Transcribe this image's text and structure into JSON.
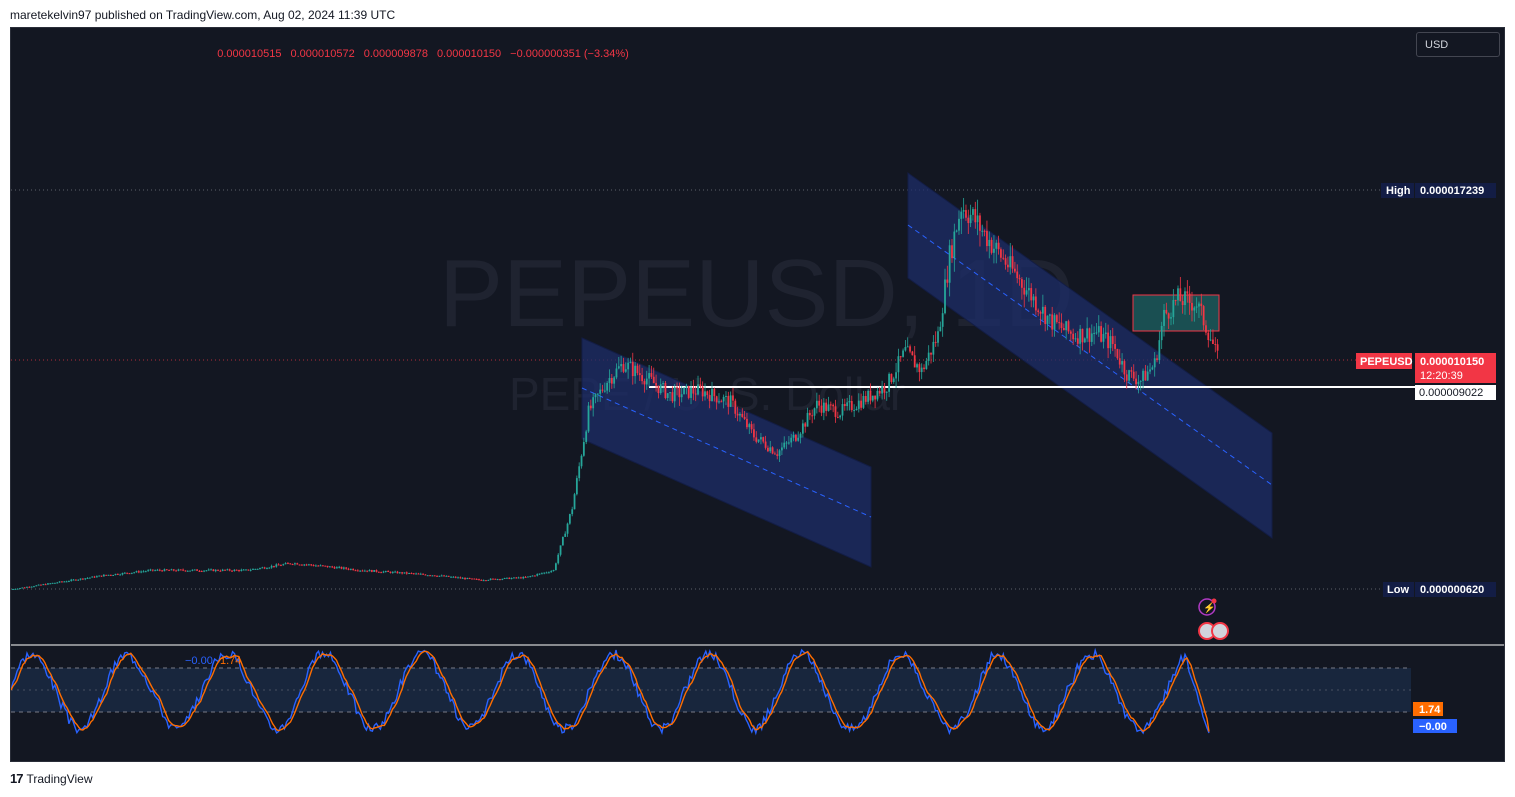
{
  "header": {
    "publish_text": "maretekelvin97 published on TradingView.com, Aug 02, 2024 11:39 UTC"
  },
  "ohlc": {
    "open": "0.000010515",
    "high": "0.000010572",
    "low": "0.000009878",
    "close": "0.000010150",
    "change": "−0.000000351 (−3.34%)"
  },
  "toolbar": {
    "currency": "USD"
  },
  "watermark": {
    "symbol": "PEPEUSD, 1D",
    "description": "PEPE / U. S. Dollar"
  },
  "colors": {
    "background": "#131722",
    "up": "#26a69a",
    "down": "#f23645",
    "channel_fill": "#1e2e68",
    "channel_mid": "#2962ff",
    "stoch_k": "#2962ff",
    "stoch_d": "#ff6d00"
  },
  "price_scale": {
    "high_label": "High",
    "high_value": "0.000017239",
    "low_label": "Low",
    "low_value": "0.000000620",
    "symbol_tag": "PEPEUSD",
    "last_price": "0.000010150",
    "countdown": "12:20:39",
    "support_value": "0.000009022"
  },
  "oscillator": {
    "legend_k": "−0.00",
    "legend_d": "1.74",
    "tag_d": "1.74",
    "tag_k": "−0.00",
    "upper_band": 80,
    "mid_band": 50,
    "lower_band": 20,
    "range": [
      0,
      100
    ]
  },
  "footer": {
    "brand": "TradingView"
  },
  "chart_data": {
    "type": "candlestick",
    "symbol": "PEPEUSD",
    "ylim": [
      6.2e-07,
      1.7239e-05
    ],
    "high": 1.7239e-05,
    "low": 6.2e-07,
    "last": 1.015e-05,
    "horizontal_level": 9.022e-06,
    "close_anchors": [
      [
        0,
        6.2e-07
      ],
      [
        40,
        1.2e-06
      ],
      [
        60,
        1.4e-06
      ],
      [
        100,
        1.4e-06
      ],
      [
        120,
        1.7e-06
      ],
      [
        150,
        1.4e-06
      ],
      [
        180,
        1.2e-06
      ],
      [
        200,
        1e-06
      ],
      [
        220,
        1.1e-06
      ],
      [
        232,
        1.4e-06
      ],
      [
        240,
        4e-06
      ],
      [
        247,
        8e-06
      ],
      [
        255,
        9.3e-06
      ],
      [
        262,
        1e-05
      ],
      [
        272,
        9.4e-06
      ],
      [
        282,
        8.7e-06
      ],
      [
        295,
        8.9e-06
      ],
      [
        308,
        8.4e-06
      ],
      [
        318,
        7e-06
      ],
      [
        328,
        6.3e-06
      ],
      [
        336,
        7e-06
      ],
      [
        345,
        8.3e-06
      ],
      [
        355,
        8e-06
      ],
      [
        365,
        8.5e-06
      ],
      [
        375,
        9.1e-06
      ],
      [
        383,
        1.05e-05
      ],
      [
        390,
        9.7e-06
      ],
      [
        397,
        1.12e-05
      ],
      [
        402,
        1.45e-05
      ],
      [
        407,
        1.66e-05
      ],
      [
        412,
        1.61e-05
      ],
      [
        420,
        1.5e-05
      ],
      [
        432,
        1.35e-05
      ],
      [
        445,
        1.18e-05
      ],
      [
        455,
        1.12e-05
      ],
      [
        465,
        1.13e-05
      ],
      [
        472,
        1.08e-05
      ],
      [
        478,
        9.6e-06
      ],
      [
        484,
        9.3e-06
      ],
      [
        490,
        1e-05
      ],
      [
        494,
        1.2e-05
      ],
      [
        500,
        1.27e-05
      ],
      [
        508,
        1.25e-05
      ],
      [
        514,
        1.11e-05
      ],
      [
        517,
        1.02e-05
      ]
    ],
    "channels": [
      {
        "name": "channel-1",
        "shape": "descending"
      },
      {
        "name": "channel-2",
        "shape": "descending"
      }
    ],
    "consolidation_zone": {
      "price_top": 1.3e-05,
      "price_bottom": 1.15e-05
    },
    "stochastic": {
      "k_last": 0.0,
      "d_last": 1.74,
      "levels": [
        20,
        50,
        80
      ]
    }
  }
}
